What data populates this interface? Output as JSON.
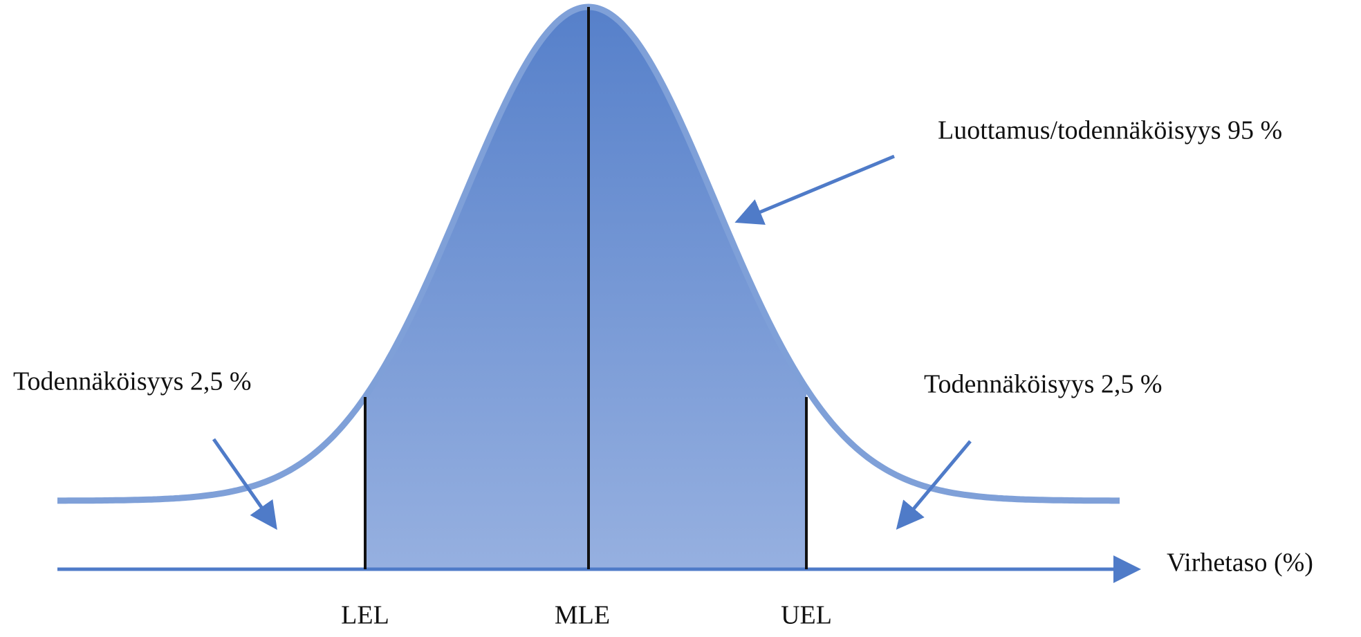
{
  "annotations": {
    "confidence": "Luottamus/todennäköisyys 95 %",
    "left_tail": "Todennäköisyys 2,5 %",
    "right_tail": "Todennäköisyys 2,5 %"
  },
  "axis_label": "Virhetaso (%)",
  "markers": [
    "LEL",
    "MLE",
    "UEL"
  ]
}
